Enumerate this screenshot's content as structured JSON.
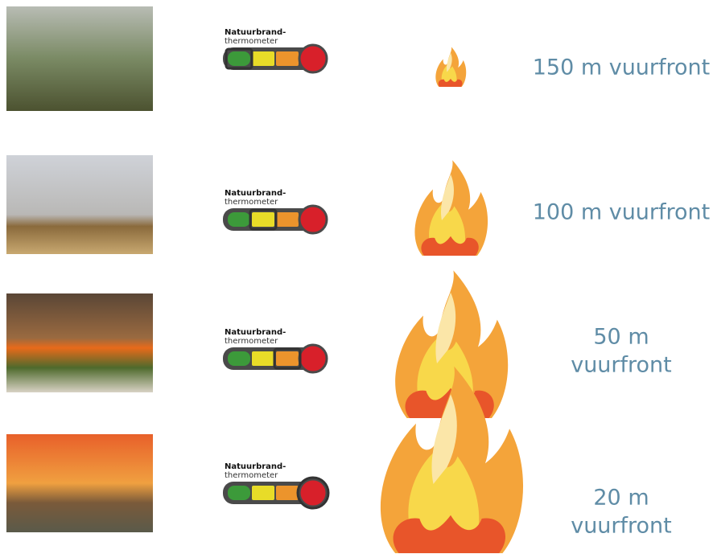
{
  "rows": [
    {
      "thermometer_title": "Natuurbrand-",
      "thermometer_subtitle": "thermometer",
      "label_lines": [
        "150 m vuurfront"
      ]
    },
    {
      "thermometer_title": "Natuurbrand-",
      "thermometer_subtitle": "thermometer",
      "label_lines": [
        "100 m vuurfront"
      ]
    },
    {
      "thermometer_title": "Natuurbrand-",
      "thermometer_subtitle": "thermometer",
      "label_lines": [
        "50 m",
        "vuurfront"
      ]
    },
    {
      "thermometer_title": "Natuurbrand-",
      "thermometer_subtitle": "thermometer",
      "label_lines": [
        "20 m",
        "vuurfront"
      ]
    }
  ]
}
